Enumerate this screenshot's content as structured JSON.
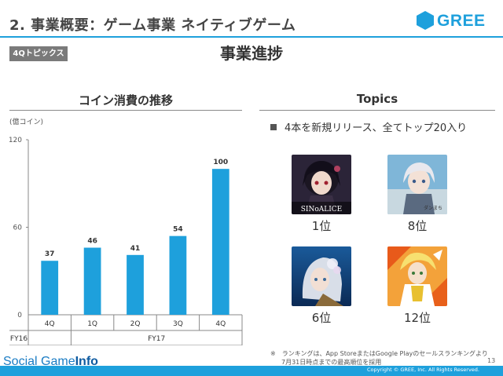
{
  "slide": {
    "title": "2. 事業概要：ゲーム事業 ネイティブゲーム",
    "logo_text": "GREE",
    "topics_badge": "4Qトピックス",
    "main_heading": "事業進捗",
    "page_number": "13",
    "copyright": "Copyright © GREE, Inc. All Rights Reserved.",
    "watermark_prefix": "Social Game",
    "watermark_suffix": "Info"
  },
  "chart_section": {
    "heading": "コイン消費の推移"
  },
  "chart_data": {
    "type": "bar",
    "unit_label": "(億コイン)",
    "categories": [
      "4Q",
      "1Q",
      "2Q",
      "3Q",
      "4Q"
    ],
    "fiscal_years": [
      {
        "label": "FY16",
        "start": 0,
        "end": 0
      },
      {
        "label": "FY17",
        "start": 1,
        "end": 4
      }
    ],
    "values": [
      37,
      46,
      41,
      54,
      100
    ],
    "yticks": [
      0,
      60,
      120
    ],
    "ylim": [
      0,
      120
    ],
    "bar_color": "#1ea0dc"
  },
  "topics_section": {
    "heading": "Topics",
    "bullet": "4本を新規リリース、全てトップ20入り",
    "games": [
      {
        "icon": "sinoalice-icon",
        "rank": "1位",
        "logo_text": "SINoALICE"
      },
      {
        "icon": "danmachi-icon",
        "rank": "8位",
        "logo_text": "ダンまち"
      },
      {
        "icon": "silver-hair-game-icon",
        "rank": "6位"
      },
      {
        "icon": "symphogear-icon",
        "rank": "12位"
      }
    ],
    "footnote_line1": "※　ランキングは、App StoreまたはGoogle Playのセールスランキングより",
    "footnote_line2": "7月31日時点までの最高順位を採用"
  }
}
